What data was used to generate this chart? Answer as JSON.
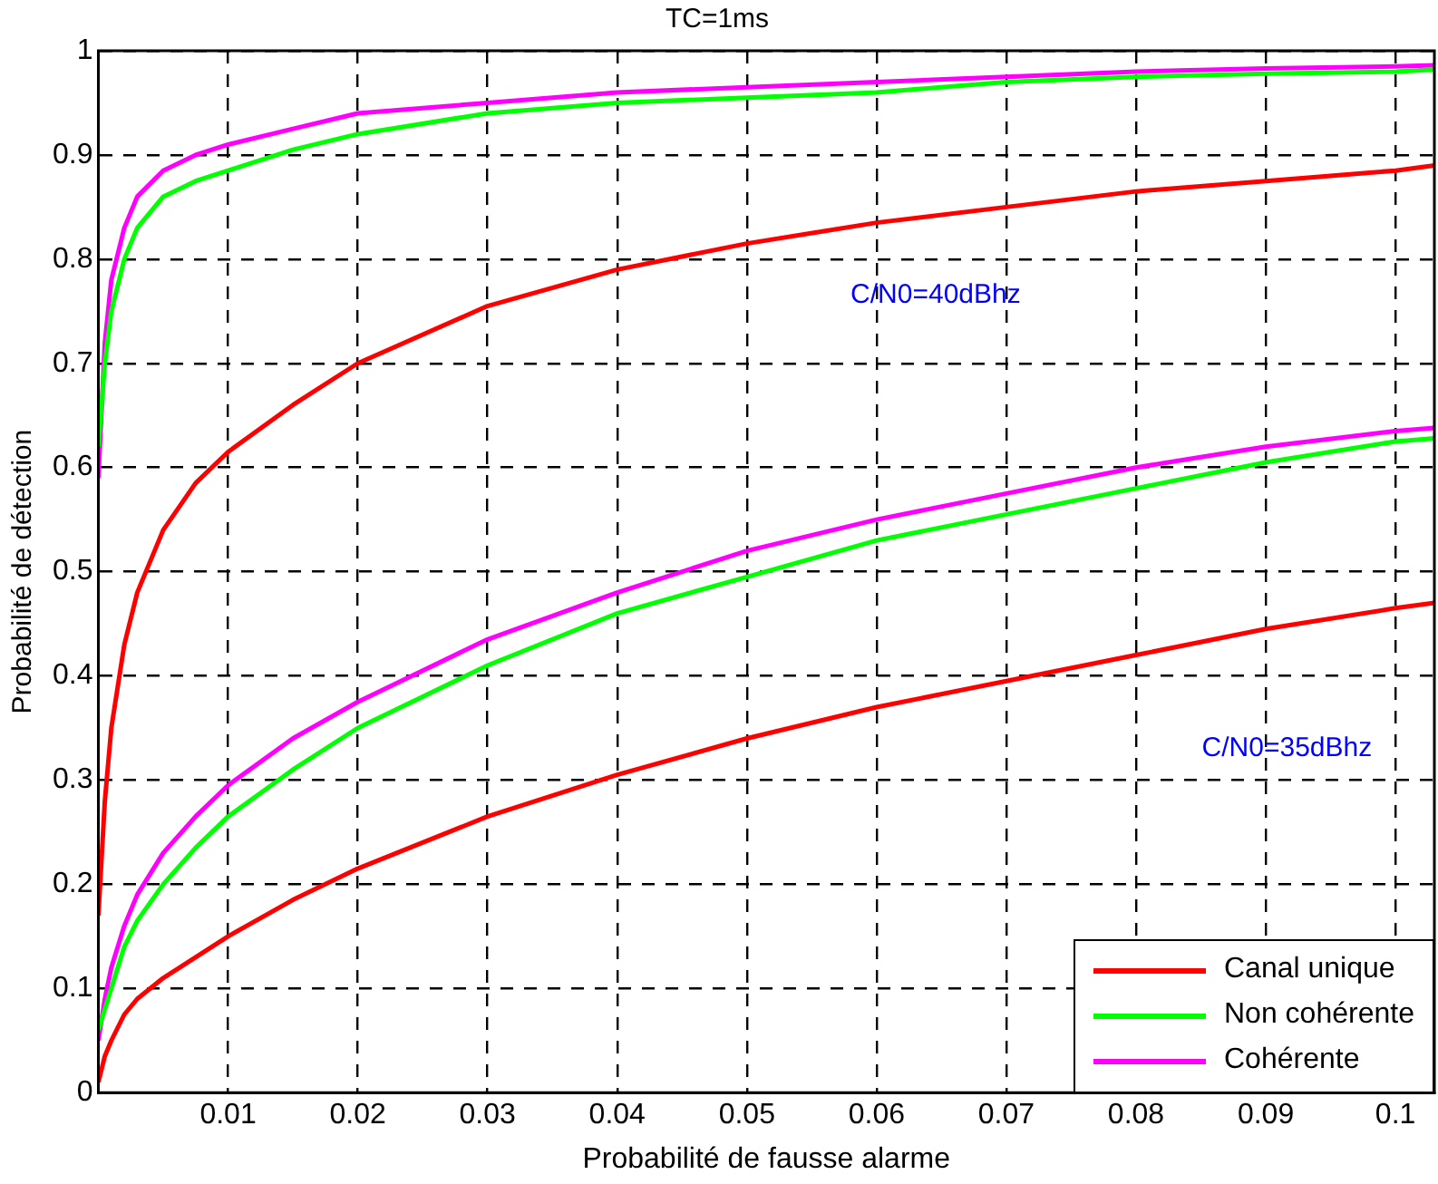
{
  "chart_data": {
    "type": "line",
    "title": "TC=1ms",
    "xlabel": "Probabilité de fausse alarme",
    "ylabel": "Probabilité de détection",
    "x": [
      0,
      0.0005,
      0.001,
      0.002,
      0.003,
      0.005,
      0.0075,
      0.01,
      0.015,
      0.02,
      0.03,
      0.04,
      0.05,
      0.06,
      0.07,
      0.08,
      0.09,
      0.1,
      0.103
    ],
    "series": [
      {
        "name": "Canal unique",
        "color": "#ff0000",
        "values": [
          0.17,
          0.28,
          0.35,
          0.43,
          0.48,
          0.54,
          0.585,
          0.615,
          0.66,
          0.7,
          0.755,
          0.79,
          0.815,
          0.835,
          0.85,
          0.865,
          0.875,
          0.885,
          0.89
        ]
      },
      {
        "name": "Non cohérente",
        "color": "#00ff00",
        "values": [
          0.62,
          0.7,
          0.75,
          0.8,
          0.83,
          0.86,
          0.875,
          0.885,
          0.905,
          0.92,
          0.94,
          0.95,
          0.955,
          0.96,
          0.97,
          0.975,
          0.978,
          0.98,
          0.982
        ]
      },
      {
        "name": "Cohérente",
        "color": "#ff00ff",
        "values": [
          0.59,
          0.72,
          0.78,
          0.83,
          0.86,
          0.885,
          0.9,
          0.91,
          0.925,
          0.94,
          0.95,
          0.96,
          0.965,
          0.97,
          0.975,
          0.98,
          0.983,
          0.985,
          0.986
        ]
      },
      {
        "color": "#ff0000",
        "values": [
          0.01,
          0.035,
          0.05,
          0.075,
          0.09,
          0.11,
          0.13,
          0.15,
          0.185,
          0.215,
          0.265,
          0.305,
          0.34,
          0.37,
          0.395,
          0.42,
          0.445,
          0.465,
          0.47
        ]
      },
      {
        "color": "#00ff00",
        "values": [
          0.06,
          0.08,
          0.1,
          0.14,
          0.165,
          0.2,
          0.235,
          0.265,
          0.31,
          0.35,
          0.41,
          0.46,
          0.495,
          0.53,
          0.555,
          0.58,
          0.605,
          0.625,
          0.628
        ]
      },
      {
        "color": "#ff00ff",
        "values": [
          0.05,
          0.09,
          0.12,
          0.16,
          0.19,
          0.23,
          0.265,
          0.295,
          0.34,
          0.375,
          0.435,
          0.48,
          0.52,
          0.55,
          0.575,
          0.6,
          0.62,
          0.635,
          0.638
        ]
      }
    ],
    "xlim": [
      0,
      0.103
    ],
    "xticks": [
      0.01,
      0.02,
      0.03,
      0.04,
      0.05,
      0.06,
      0.07,
      0.08,
      0.09,
      0.1
    ],
    "ylim": [
      0,
      1
    ],
    "yticks": [
      0,
      0.1,
      0.2,
      0.3,
      0.4,
      0.5,
      0.6,
      0.7,
      0.8,
      0.9,
      1
    ],
    "annotations": [
      "C/N0=40dBhz",
      "C/N0=35dBhz"
    ],
    "grid": true,
    "legend": "bottom right",
    "marker": "none",
    "line_style": "solid"
  }
}
